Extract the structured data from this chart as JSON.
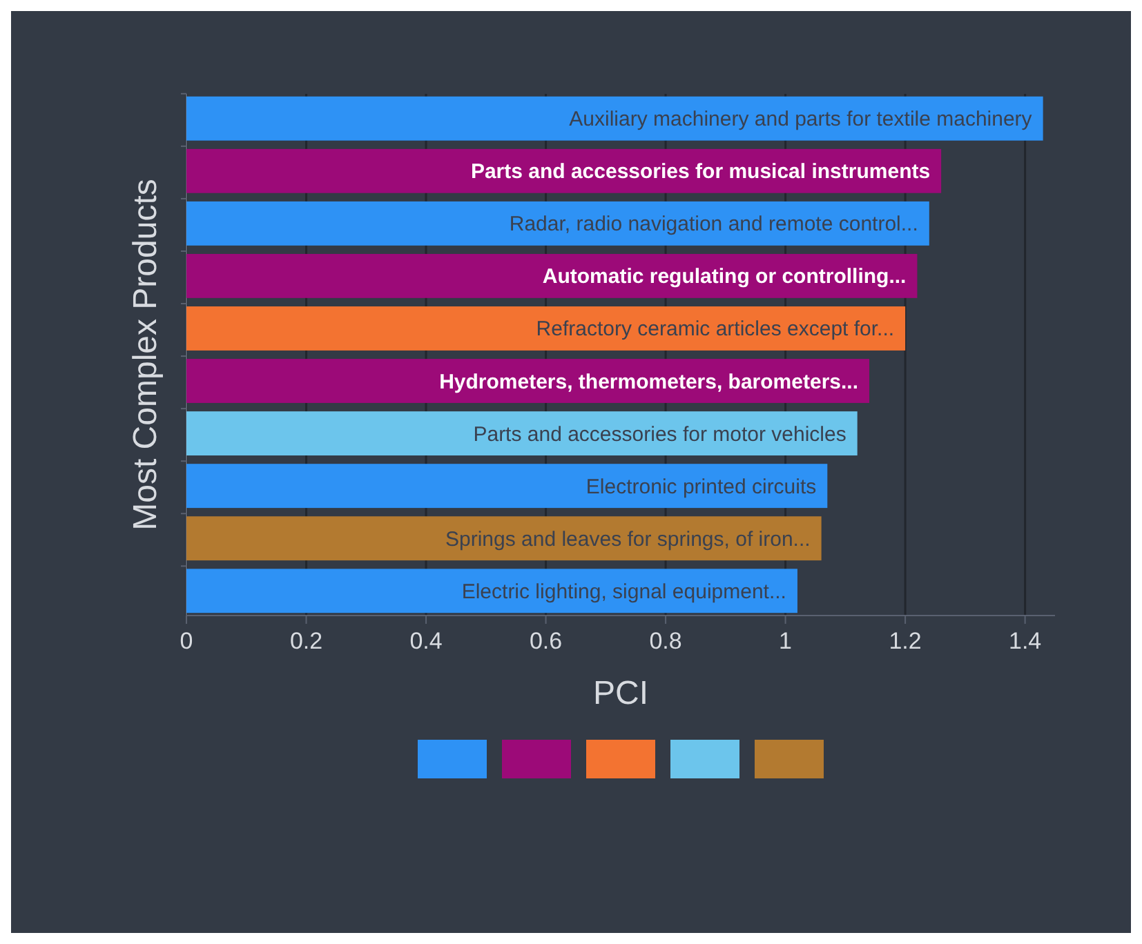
{
  "chart_data": {
    "type": "bar",
    "orientation": "horizontal",
    "xlabel": "PCI",
    "ylabel": "Most Complex Products",
    "categories": [
      "Auxiliary machinery and parts for textile machinery",
      "Parts and accessories for musical instruments",
      "Radar, radio navigation and remote control...",
      "Automatic regulating or controlling...",
      "Refractory ceramic articles except for...",
      "Hydrometers, thermometers, barometers...",
      "Parts and accessories for motor vehicles",
      "Electronic printed circuits",
      "Springs and leaves for springs, of iron...",
      "Electric lighting, signal equipment..."
    ],
    "values": [
      1.43,
      1.26,
      1.24,
      1.22,
      1.2,
      1.14,
      1.12,
      1.07,
      1.06,
      1.02
    ],
    "colors": [
      "#2e92f5",
      "#9c0a78",
      "#2e92f5",
      "#9c0a78",
      "#f37331",
      "#9c0a78",
      "#6cc5ec",
      "#2e92f5",
      "#b37a30",
      "#2e92f5"
    ],
    "xlim": [
      0,
      1.45
    ],
    "xticks": [
      0,
      0.2,
      0.4,
      0.6,
      0.8,
      1,
      1.2,
      1.4
    ],
    "grid": "x"
  }
}
